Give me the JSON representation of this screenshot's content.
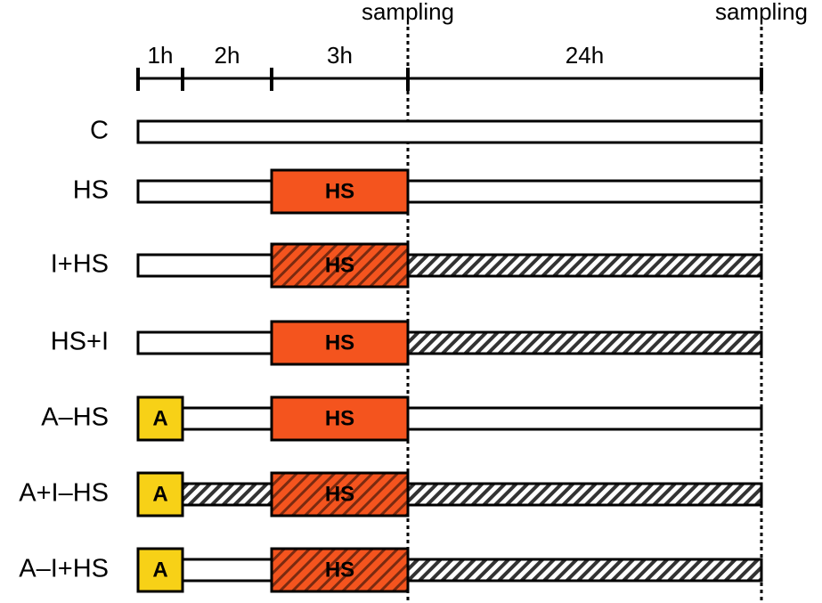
{
  "sampling_labels": [
    "sampling",
    "sampling"
  ],
  "intervals": [
    "1h",
    "2h",
    "3h",
    "24h"
  ],
  "rows": [
    {
      "label": "C",
      "boxes": []
    },
    {
      "label": "HS",
      "boxes": [
        "HS"
      ]
    },
    {
      "label": "I+HS",
      "boxes": [
        "HS"
      ]
    },
    {
      "label": "HS+I",
      "boxes": [
        "HS"
      ]
    },
    {
      "label": "A–HS",
      "boxes": [
        "A",
        "HS"
      ]
    },
    {
      "label": "A+I–HS",
      "boxes": [
        "A",
        "HS"
      ]
    },
    {
      "label": "A–I+HS",
      "boxes": [
        "A",
        "HS"
      ]
    }
  ]
}
